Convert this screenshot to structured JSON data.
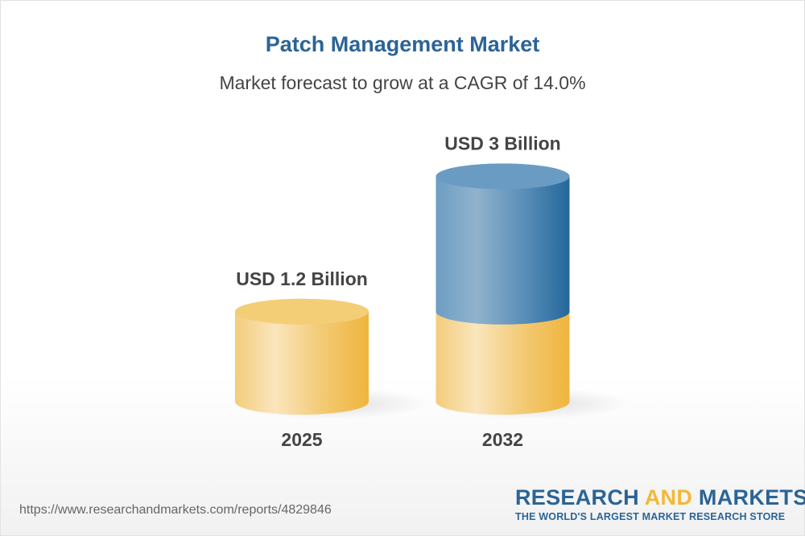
{
  "header": {
    "title": "Patch Management Market",
    "subtitle": "Market forecast to grow at a CAGR of 14.0%"
  },
  "chart_data": {
    "type": "bar",
    "style": "3d-cylinder",
    "categories": [
      "2025",
      "2032"
    ],
    "values": [
      1.2,
      3
    ],
    "data_labels": [
      "USD 1.2 Billion",
      "USD 3 Billion"
    ],
    "unit": "USD Billion",
    "title": "Patch Management Market",
    "subtitle": "Market forecast to grow at a CAGR of 14.0%",
    "grid": false,
    "colors": {
      "base": "#f1b937",
      "growth": "#2b6496"
    }
  },
  "footer": {
    "url": "https://www.researchandmarkets.com/reports/4829846",
    "logo_line1_a": "RESEARCH ",
    "logo_line1_b": "AND",
    "logo_line1_c": " MARKETS",
    "logo_line2": "THE WORLD'S LARGEST MARKET RESEARCH STORE"
  }
}
